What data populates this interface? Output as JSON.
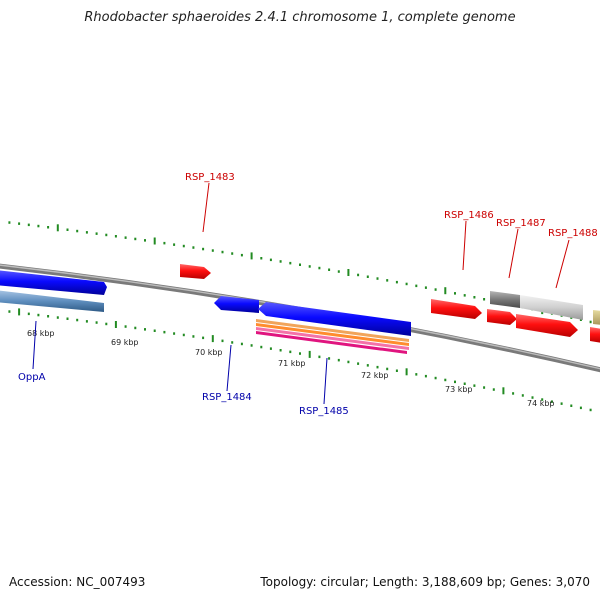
{
  "title": "Rhodobacter sphaeroides 2.4.1 chromosome 1, complete genome",
  "footer": {
    "accession": "Accession: NC_007493",
    "summary": "Topology: circular; Length: 3,188,609 bp; Genes: 3,070"
  },
  "scale_labels": [
    "68 kbp",
    "69 kbp",
    "70 kbp",
    "71 kbp",
    "72 kbp",
    "73 kbp",
    "74 kbp"
  ],
  "gene_labels": [
    {
      "text": "OppA",
      "strand": "reverse"
    },
    {
      "text": "RSP_1483",
      "strand": "forward"
    },
    {
      "text": "RSP_1484",
      "strand": "reverse"
    },
    {
      "text": "RSP_1485",
      "strand": "reverse"
    },
    {
      "text": "RSP_1486",
      "strand": "forward"
    },
    {
      "text": "RSP_1487",
      "strand": "forward"
    },
    {
      "text": "RSP_1488",
      "strand": "forward"
    }
  ],
  "colors": {
    "forward_strand": "#cc0000",
    "reverse_strand": "#0000aa",
    "tick": "#228b22",
    "backbone": "#888888",
    "gene_forward": "#ff1a1a",
    "gene_reverse": "#1a1aff"
  }
}
